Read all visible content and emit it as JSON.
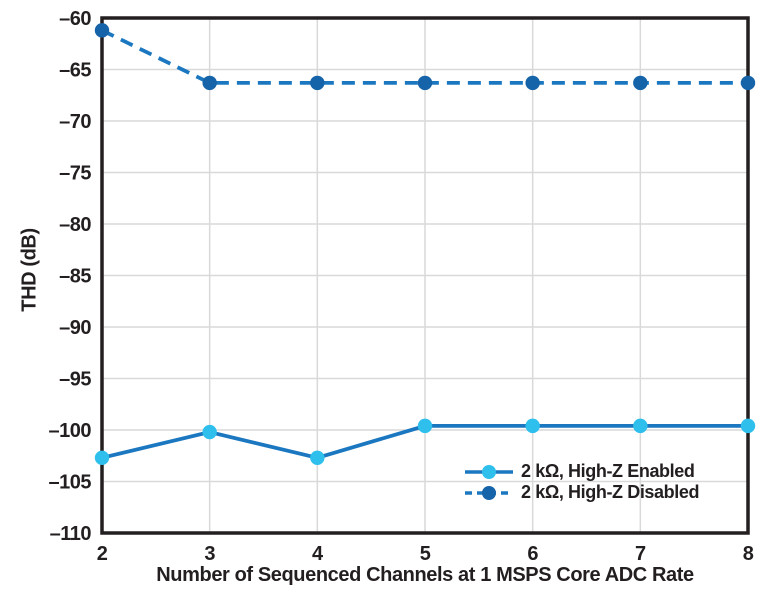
{
  "background_color": "#ffffff",
  "text_color": "#231f20",
  "grid_color": "#d9d9d9",
  "frame_color": "#231f20",
  "chart_data": {
    "type": "line",
    "title": "",
    "xlabel": "Number of Sequenced Channels at 1 MSPS Core ADC Rate",
    "ylabel": "THD (dB)",
    "xlim": [
      2,
      8
    ],
    "ylim": [
      -110,
      -60
    ],
    "grid": true,
    "legend_position": "lower right",
    "xtick_values": [
      2,
      3,
      4,
      5,
      6,
      7,
      8
    ],
    "xtick_labels": [
      "2",
      "3",
      "4",
      "5",
      "6",
      "7",
      "8"
    ],
    "ytick_values": [
      -60,
      -65,
      -70,
      -75,
      -80,
      -85,
      -90,
      -95,
      -100,
      -105,
      -110
    ],
    "ytick_labels": [
      "–60",
      "–65",
      "–70",
      "–75",
      "–80",
      "–85",
      "–90",
      "–95",
      "–100",
      "–105",
      "–110"
    ],
    "x": [
      2,
      3,
      4,
      5,
      6,
      7,
      8
    ],
    "series": [
      {
        "name": "2 kΩ, High-Z Enabled",
        "values": [
          -102.7,
          -100.2,
          -102.7,
          -99.6,
          -99.6,
          -99.6,
          -99.6
        ],
        "line_style": "solid",
        "line_color": "#1b78c0",
        "marker_color": "#2ebfed"
      },
      {
        "name": "2 kΩ, High-Z Disabled",
        "values": [
          -61.2,
          -66.3,
          -66.3,
          -66.3,
          -66.3,
          -66.3,
          -66.3
        ],
        "line_style": "dashed",
        "line_color": "#1b78c0",
        "marker_color": "#1563a8"
      }
    ]
  }
}
